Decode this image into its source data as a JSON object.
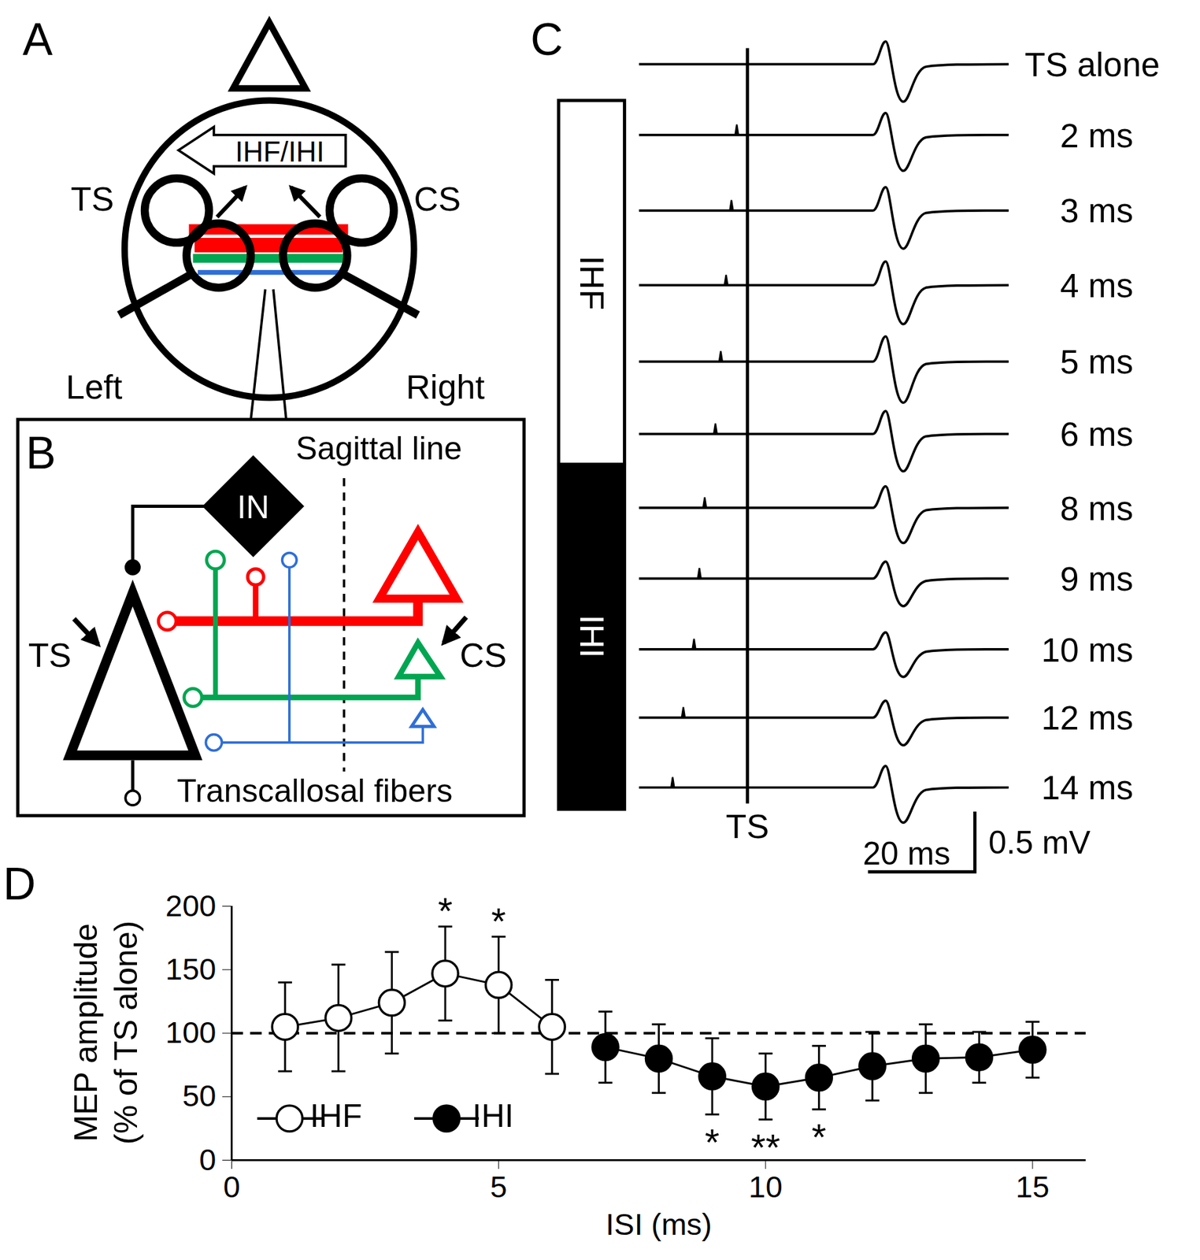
{
  "chart_data": {
    "type": "line",
    "title": "D",
    "xlabel": "ISI (ms)",
    "ylabel": [
      "MEP amplitude",
      "(% of TS alone)"
    ],
    "x": [
      1,
      2,
      3,
      4,
      5,
      6,
      7,
      8,
      9,
      10,
      11,
      12,
      13,
      14,
      15
    ],
    "series": [
      {
        "name": "IHF",
        "color": "#000000",
        "marker": "open circle",
        "line_style": "solid",
        "values": [
          105,
          112,
          124,
          147,
          138,
          105,
          null,
          null,
          null,
          null,
          null,
          null,
          null,
          null,
          null
        ],
        "errors": [
          35,
          42,
          40,
          37,
          38,
          37,
          null,
          null,
          null,
          null,
          null,
          null,
          null,
          null,
          null
        ]
      },
      {
        "name": "IHI",
        "color": "#000000",
        "marker": "filled circle",
        "line_style": "solid",
        "values": [
          null,
          null,
          null,
          null,
          null,
          null,
          89,
          80,
          66,
          58,
          65,
          74,
          80,
          81,
          87
        ],
        "errors": [
          null,
          null,
          null,
          null,
          null,
          null,
          28,
          27,
          30,
          26,
          25,
          27,
          27,
          20,
          22
        ]
      }
    ],
    "hline": 100,
    "annotations": [
      {
        "x": 4,
        "text": "*",
        "side": "above"
      },
      {
        "x": 5,
        "text": "*",
        "side": "above"
      },
      {
        "x": 9,
        "text": "*",
        "side": "below"
      },
      {
        "x": 10,
        "text": "**",
        "side": "below"
      },
      {
        "x": 11,
        "text": "*",
        "side": "below"
      }
    ],
    "xlim": [
      0,
      16
    ],
    "xticks": [
      0,
      5,
      10,
      15
    ],
    "ylim": [
      0,
      200
    ],
    "yticks": [
      0,
      50,
      100,
      150,
      200
    ],
    "grid": false,
    "legend": "lower left"
  },
  "diagrams": {
    "A": {
      "label": "A",
      "arrow_label": "IHF/IHI",
      "test_coil": "TS",
      "conditioning_coil": "CS",
      "left": "Left",
      "right": "Right"
    },
    "B": {
      "label": "B",
      "midline": "Sagittal line",
      "interneuron": "IN",
      "test_site": "TS",
      "conditioning_site": "CS",
      "fibers": "Transcallosal fibers"
    },
    "C": {
      "label": "C",
      "ts_marker": "TS",
      "phases": [
        "IHF",
        "IHI"
      ],
      "scale_time": "20 ms",
      "scale_amplitude": "0.5 mV",
      "traces": [
        {
          "label": "TS alone",
          "isi": null,
          "mep_mV": 0.5
        },
        {
          "label": "2 ms",
          "isi": 2,
          "mep_mV": 0.48
        },
        {
          "label": "3 ms",
          "isi": 3,
          "mep_mV": 0.51
        },
        {
          "label": "4 ms",
          "isi": 4,
          "mep_mV": 0.52
        },
        {
          "label": "5 ms",
          "isi": 5,
          "mep_mV": 0.55
        },
        {
          "label": "6 ms",
          "isi": 6,
          "mep_mV": 0.5
        },
        {
          "label": "8 ms",
          "isi": 8,
          "mep_mV": 0.47
        },
        {
          "label": "9 ms",
          "isi": 9,
          "mep_mV": 0.37
        },
        {
          "label": "10 ms",
          "isi": 10,
          "mep_mV": 0.37
        },
        {
          "label": "12 ms",
          "isi": 12,
          "mep_mV": 0.37
        },
        {
          "label": "14 ms",
          "isi": 14,
          "mep_mV": 0.47
        }
      ]
    }
  }
}
